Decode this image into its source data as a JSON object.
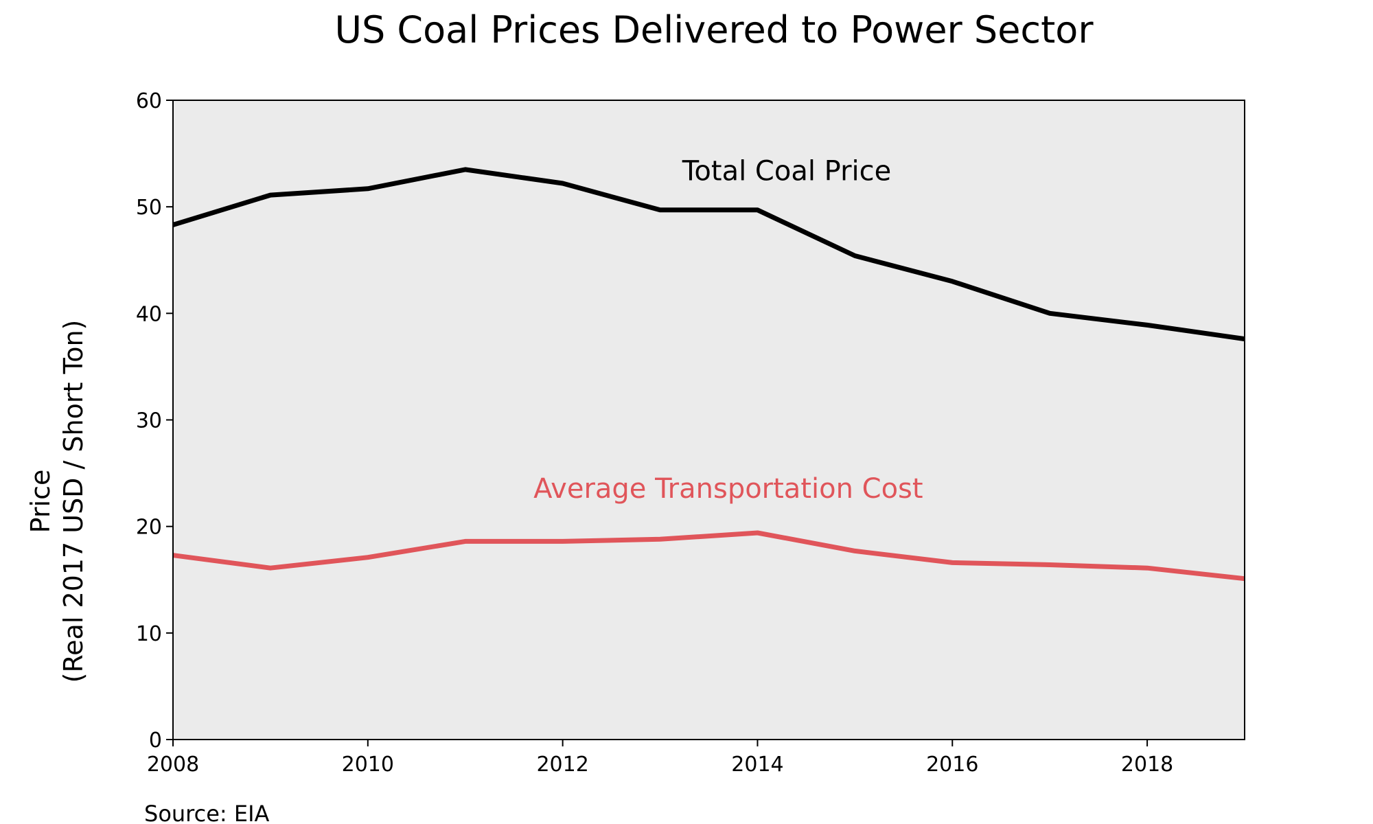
{
  "chart_data": {
    "type": "line",
    "title": "US Coal Prices Delivered to Power Sector",
    "xlabel": "",
    "ylabel_line1": "Price",
    "ylabel_line2": "(Real 2017 USD / Short Ton)",
    "source": "Source: EIA",
    "xlim": [
      2008,
      2019
    ],
    "ylim": [
      0,
      60
    ],
    "x_ticks": [
      2008,
      2010,
      2012,
      2014,
      2016,
      2018
    ],
    "y_ticks": [
      0,
      10,
      20,
      30,
      40,
      50,
      60
    ],
    "grid": false,
    "plot_background": "#ebebeb",
    "x": [
      2008,
      2009,
      2010,
      2011,
      2012,
      2013,
      2014,
      2015,
      2016,
      2017,
      2018,
      2019
    ],
    "series": [
      {
        "name": "Total Coal Price",
        "color": "#000000",
        "values": [
          48.3,
          51.1,
          51.7,
          53.5,
          52.2,
          49.7,
          49.7,
          45.4,
          43.0,
          40.0,
          38.9,
          37.6
        ]
      },
      {
        "name": "Average Transportation Cost",
        "color": "#e0555a",
        "values": [
          17.3,
          16.1,
          17.1,
          18.6,
          18.6,
          18.8,
          19.4,
          17.7,
          16.6,
          16.4,
          16.1,
          15.1
        ]
      }
    ],
    "annotations": [
      {
        "text": "Total Coal Price",
        "series": 0,
        "anchor_x": 2014.3,
        "anchor_y": 53.4,
        "color": "#000000"
      },
      {
        "text": "Average Transportation Cost",
        "series": 1,
        "anchor_x": 2013.7,
        "anchor_y": 23.6,
        "color": "#e0555a"
      }
    ]
  }
}
